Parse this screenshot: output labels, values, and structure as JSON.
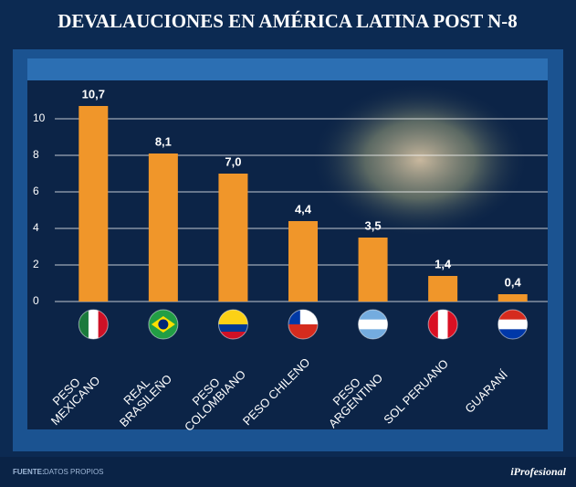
{
  "header": {
    "title": "DEVALAUCIONES EN AMÉRICA LATINA POST N-8"
  },
  "chart_data": {
    "type": "bar",
    "categories": [
      "PESO\nMEXICANO",
      "REAL\nBRASILEÑO",
      "PESO\nCOLOMBIANO",
      "PESO CHILENO",
      "PESO\nARGENTINO",
      "SOL PERUANO",
      "GUARANÍ"
    ],
    "values": [
      10.7,
      8.1,
      7.0,
      4.4,
      3.5,
      1.4,
      0.4
    ],
    "value_labels": [
      "10,7",
      "8,1",
      "7,0",
      "4,4",
      "3,5",
      "1,4",
      "0,4"
    ],
    "color": "#f0962a",
    "ylim": [
      0,
      12
    ],
    "yticks": [
      0,
      2,
      4,
      6,
      8,
      10
    ],
    "grid": true
  },
  "footer": {
    "source_label": "FUENTE:",
    "source": "DATOS PROPIOS",
    "brand": "iProfesional"
  }
}
